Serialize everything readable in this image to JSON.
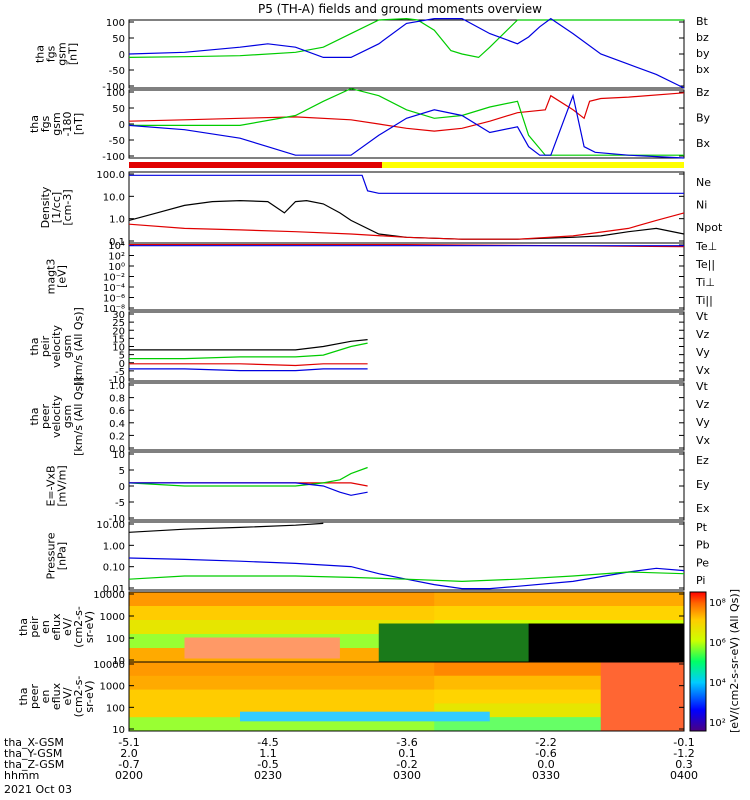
{
  "title": "P5 (TH-A) fields and ground moments overview",
  "date": "2021 Oct 03",
  "colors": {
    "black": "#000000",
    "red": "#e00000",
    "green": "#00cc00",
    "blue": "#0000e0",
    "yellow": "#ffff00"
  },
  "chart_data": [
    {
      "type": "line",
      "ylabel": [
        "tha",
        "fgs",
        "gsm",
        "[nT]"
      ],
      "yticks": [
        "100",
        "50",
        "0",
        "-50",
        "-100"
      ],
      "ylim": [
        -100,
        100
      ],
      "legend": [
        {
          "label": "Bt",
          "color": "black"
        },
        {
          "label": "bz",
          "color": "red"
        },
        {
          "label": "by",
          "color": "green"
        },
        {
          "label": "bx",
          "color": "blue"
        }
      ],
      "series": [
        {
          "name": "by",
          "color": "green",
          "x": [
            0,
            0.1,
            0.2,
            0.3,
            0.35,
            0.4,
            0.45,
            0.5,
            0.52,
            0.55,
            0.58,
            0.6,
            0.63,
            0.65,
            0.7,
            0.8,
            0.9,
            1.0
          ],
          "y": [
            -10,
            -8,
            -5,
            5,
            20,
            60,
            100,
            140,
            100,
            70,
            10,
            0,
            -10,
            20,
            100,
            100,
            100,
            100
          ]
        },
        {
          "name": "bx",
          "color": "blue",
          "x": [
            0,
            0.1,
            0.2,
            0.25,
            0.3,
            0.35,
            0.4,
            0.45,
            0.5,
            0.55,
            0.6,
            0.65,
            0.7,
            0.72,
            0.74,
            0.76,
            0.8,
            0.85,
            0.9,
            0.95,
            1.0
          ],
          "y": [
            0,
            5,
            20,
            30,
            20,
            -10,
            -10,
            30,
            90,
            150,
            120,
            60,
            30,
            50,
            80,
            120,
            60,
            0,
            -30,
            -60,
            -100
          ]
        }
      ]
    },
    {
      "type": "line",
      "ylabel": [
        "tha",
        "fgs",
        "gsm",
        "-180",
        "[nT]"
      ],
      "yticks": [
        "100",
        "50",
        "0",
        "-50",
        "-100"
      ],
      "ylim": [
        -120,
        120
      ],
      "legend": [
        {
          "label": "Bz",
          "color": "red"
        },
        {
          "label": "By",
          "color": "green"
        },
        {
          "label": "Bx",
          "color": "blue"
        }
      ],
      "series": [
        {
          "name": "Bz",
          "color": "red",
          "x": [
            0,
            0.1,
            0.2,
            0.3,
            0.4,
            0.45,
            0.5,
            0.55,
            0.6,
            0.65,
            0.7,
            0.75,
            0.76,
            0.8,
            0.82,
            0.83,
            0.85,
            0.9,
            1.0
          ],
          "y": [
            10,
            15,
            20,
            25,
            15,
            0,
            -15,
            -25,
            -15,
            10,
            40,
            50,
            100,
            50,
            20,
            80,
            90,
            95,
            110
          ]
        },
        {
          "name": "By",
          "color": "green",
          "x": [
            0,
            0.1,
            0.2,
            0.3,
            0.35,
            0.4,
            0.45,
            0.5,
            0.55,
            0.6,
            0.65,
            0.7,
            0.72,
            0.75,
            0.8,
            0.85,
            0.9,
            1.0
          ],
          "y": [
            -5,
            -5,
            -5,
            30,
            80,
            150,
            100,
            50,
            20,
            30,
            60,
            80,
            -40,
            -110,
            -110,
            -110,
            -110,
            -110
          ]
        },
        {
          "name": "Bx",
          "color": "blue",
          "x": [
            0,
            0.1,
            0.2,
            0.25,
            0.3,
            0.4,
            0.45,
            0.5,
            0.55,
            0.6,
            0.65,
            0.7,
            0.72,
            0.74,
            0.76,
            0.8,
            0.82,
            0.84,
            0.9,
            1.0
          ],
          "y": [
            -5,
            -20,
            -50,
            -80,
            -110,
            -110,
            -40,
            20,
            50,
            30,
            -30,
            -10,
            -80,
            -110,
            -110,
            100,
            -80,
            -100,
            -110,
            -120
          ]
        }
      ]
    },
    {
      "type": "line",
      "log": true,
      "ylabel": [
        "Density",
        "[1/cc]",
        "[cm-3]"
      ],
      "yticks": [
        "100.0",
        "10.0",
        "1.0",
        "0.1"
      ],
      "ylim": [
        0.05,
        300
      ],
      "legend": [
        {
          "label": "Ne",
          "color": "red"
        },
        {
          "label": "Ni",
          "color": "black"
        },
        {
          "label": "Npot",
          "color": "blue"
        }
      ],
      "series": [
        {
          "name": "Npot",
          "color": "blue",
          "x": [
            0,
            0.3,
            0.4,
            0.42,
            0.43,
            0.45,
            1.0
          ],
          "y": [
            200,
            200,
            200,
            200,
            30,
            22,
            22
          ]
        },
        {
          "name": "Ni",
          "color": "black",
          "x": [
            0,
            0.05,
            0.1,
            0.15,
            0.2,
            0.25,
            0.28,
            0.3,
            0.32,
            0.35,
            0.38,
            0.4,
            0.45,
            0.5,
            0.6,
            0.7,
            0.8,
            0.85,
            0.9,
            0.95,
            1.0
          ],
          "y": [
            0.8,
            2,
            5,
            8,
            9,
            8,
            2,
            8,
            9,
            6,
            2,
            0.8,
            0.15,
            0.1,
            0.08,
            0.08,
            0.1,
            0.12,
            0.2,
            0.3,
            0.15
          ]
        },
        {
          "name": "Ne",
          "color": "red",
          "x": [
            0,
            0.1,
            0.2,
            0.3,
            0.4,
            0.5,
            0.6,
            0.7,
            0.8,
            0.9,
            0.95,
            1.0
          ],
          "y": [
            0.5,
            0.3,
            0.25,
            0.2,
            0.15,
            0.1,
            0.08,
            0.08,
            0.12,
            0.3,
            0.8,
            2
          ]
        }
      ]
    },
    {
      "type": "line",
      "log": true,
      "ylabel": [
        "magt3",
        "[eV]"
      ],
      "yticks": [
        "10⁴",
        "10²",
        "10⁰",
        "10⁻²",
        "10⁻⁴",
        "10⁻⁶",
        "10⁻⁸"
      ],
      "ylim": [
        1e-09,
        10000.0
      ],
      "legend": [
        {
          "label": "Te⊥",
          "color": "red"
        },
        {
          "label": "Te||",
          "color": "black"
        },
        {
          "label": "Ti⊥",
          "color": "yellow"
        },
        {
          "label": "Ti||",
          "color": "green"
        }
      ],
      "series": [
        {
          "name": "Te",
          "color": "red",
          "x": [
            0,
            0.5,
            1.0
          ],
          "y": [
            5000,
            5000,
            2000
          ]
        },
        {
          "name": "Ti",
          "color": "blue",
          "x": [
            0,
            0.5,
            1.0
          ],
          "y": [
            3000,
            3000,
            3000
          ]
        }
      ]
    },
    {
      "type": "line",
      "ylabel": [
        "tha",
        "peir",
        "velocity",
        "gsm",
        "[km/s (All Qs)]"
      ],
      "yticks": [
        "30",
        "25",
        "20",
        "15",
        "10",
        "5",
        "0",
        "-5",
        "-10"
      ],
      "ylim": [
        -10,
        30
      ],
      "legend": [
        {
          "label": "Vt",
          "color": "black"
        },
        {
          "label": "Vz",
          "color": "red"
        },
        {
          "label": "Vy",
          "color": "green"
        },
        {
          "label": "Vx",
          "color": "blue"
        }
      ],
      "series": [
        {
          "name": "Vt",
          "color": "black",
          "x": [
            0,
            0.1,
            0.2,
            0.3,
            0.35,
            0.4,
            0.43
          ],
          "y": [
            8,
            8,
            8,
            8,
            10,
            13,
            14
          ]
        },
        {
          "name": "Vy",
          "color": "green",
          "x": [
            0,
            0.1,
            0.2,
            0.3,
            0.35,
            0.4,
            0.43
          ],
          "y": [
            3,
            3,
            4,
            4,
            5,
            10,
            12
          ]
        },
        {
          "name": "Vz",
          "color": "red",
          "x": [
            0,
            0.1,
            0.2,
            0.3,
            0.35,
            0.4,
            0.43
          ],
          "y": [
            0,
            0,
            0,
            -1,
            0,
            0,
            0
          ]
        },
        {
          "name": "Vx",
          "color": "blue",
          "x": [
            0,
            0.1,
            0.2,
            0.3,
            0.35,
            0.4,
            0.43
          ],
          "y": [
            -3,
            -3,
            -4,
            -4,
            -3,
            -3,
            -3
          ]
        }
      ]
    },
    {
      "type": "line",
      "ylabel": [
        "tha",
        "peer",
        "velocity",
        "gsm",
        "[km/s (All Qs)]"
      ],
      "yticks": [
        "1.0",
        "0.8",
        "0.6",
        "0.4",
        "0.2",
        "0.0"
      ],
      "ylim": [
        0,
        1
      ],
      "legend": [
        {
          "label": "Vt",
          "color": "black"
        },
        {
          "label": "Vz",
          "color": "red"
        },
        {
          "label": "Vy",
          "color": "green"
        },
        {
          "label": "Vx",
          "color": "blue"
        }
      ],
      "series": []
    },
    {
      "type": "line",
      "ylabel": [
        "E=-VxB",
        "[mV/m]"
      ],
      "yticks": [
        "10",
        "5",
        "0",
        "-5",
        "-10"
      ],
      "ylim": [
        -12,
        10
      ],
      "legend": [
        {
          "label": "Ez",
          "color": "red"
        },
        {
          "label": "Ey",
          "color": "green"
        },
        {
          "label": "Ex",
          "color": "blue"
        }
      ],
      "series": [
        {
          "name": "Ez",
          "color": "red",
          "x": [
            0,
            0.1,
            0.2,
            0.3,
            0.4,
            0.43
          ],
          "y": [
            0,
            0,
            0,
            0,
            0,
            -1
          ]
        },
        {
          "name": "Ey",
          "color": "green",
          "x": [
            0,
            0.1,
            0.2,
            0.3,
            0.35,
            0.38,
            0.4,
            0.43
          ],
          "y": [
            0,
            -1,
            -1,
            -1,
            0,
            1,
            3,
            5
          ]
        },
        {
          "name": "Ex",
          "color": "blue",
          "x": [
            0,
            0.1,
            0.2,
            0.3,
            0.35,
            0.38,
            0.4,
            0.43
          ],
          "y": [
            0,
            0,
            0,
            0,
            -1,
            -3,
            -4,
            -3
          ]
        }
      ]
    },
    {
      "type": "line",
      "log": true,
      "ylabel": [
        "Pressure",
        "[nPa]"
      ],
      "yticks": [
        "10.00",
        "1.00",
        "0.10",
        "0.01"
      ],
      "ylim": [
        0.005,
        30
      ],
      "legend": [
        {
          "label": "Pt",
          "color": "black"
        },
        {
          "label": "Pb",
          "color": "red"
        },
        {
          "label": "Pe",
          "color": "green"
        },
        {
          "label": "Pi",
          "color": "blue"
        }
      ],
      "series": [
        {
          "name": "Pt",
          "color": "black",
          "x": [
            0,
            0.1,
            0.2,
            0.3,
            0.35
          ],
          "y": [
            8,
            12,
            15,
            20,
            25
          ]
        },
        {
          "name": "Pi",
          "color": "blue",
          "x": [
            0,
            0.1,
            0.2,
            0.3,
            0.4,
            0.45,
            0.5,
            0.55,
            0.6,
            0.65,
            0.7,
            0.8,
            0.9,
            0.95,
            1.0
          ],
          "y": [
            0.3,
            0.25,
            0.2,
            0.15,
            0.1,
            0.04,
            0.02,
            0.01,
            0.006,
            0.006,
            0.008,
            0.015,
            0.05,
            0.08,
            0.06
          ]
        },
        {
          "name": "Pe",
          "color": "green",
          "x": [
            0,
            0.1,
            0.2,
            0.3,
            0.4,
            0.5,
            0.6,
            0.7,
            0.8,
            0.9,
            1.0
          ],
          "y": [
            0.02,
            0.03,
            0.03,
            0.03,
            0.025,
            0.02,
            0.015,
            0.02,
            0.03,
            0.05,
            0.04
          ]
        }
      ]
    },
    {
      "type": "heatmap",
      "ylabel": [
        "tha",
        "peir",
        "en",
        "eflux",
        "eV/",
        "(cm2-s-",
        "sr-eV)"
      ],
      "yticks": [
        "10000",
        "1000",
        "100",
        "10"
      ]
    },
    {
      "type": "heatmap",
      "ylabel": [
        "tha",
        "peer",
        "en",
        "eflux",
        "eV/",
        "(cm2-s-",
        "sr-eV)"
      ],
      "yticks": [
        "10000",
        "1000",
        "100",
        "10"
      ]
    }
  ],
  "colorbar": {
    "label": "[eV/(cm2-s-sr-eV) (All Qs)]",
    "ticks": [
      "10⁸",
      "10⁶",
      "10⁴",
      "10²"
    ]
  },
  "x_axis": {
    "ticks": [
      "-5.1",
      "-4.5",
      "-3.6",
      "-2.2",
      "-0.1"
    ],
    "rows": [
      {
        "label": "tha_X-GSM",
        "values": [
          "-5.1",
          "-4.5",
          "-3.6",
          "-2.2",
          "-0.1"
        ]
      },
      {
        "label": "tha_Y-GSM",
        "values": [
          "2.0",
          "1.1",
          "0.1",
          "-0.6",
          "-1.2"
        ]
      },
      {
        "label": "tha_Z-GSM",
        "values": [
          "-0.7",
          "-0.5",
          "-0.2",
          "0.0",
          "0.3"
        ]
      },
      {
        "label": "hhmm",
        "values": [
          "0200",
          "0230",
          "0300",
          "0330",
          "0400"
        ]
      }
    ]
  }
}
